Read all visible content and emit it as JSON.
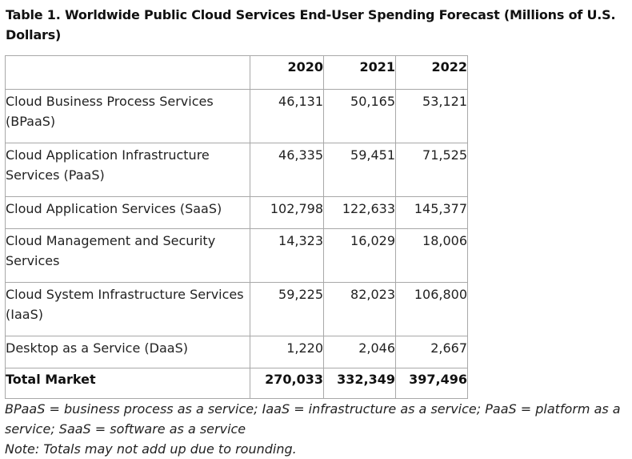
{
  "caption": "Table 1. Worldwide Public Cloud Services End-User Spending Forecast (Millions of U.S. Dollars)",
  "table": {
    "columns": [
      "",
      "2020",
      "2021",
      "2022"
    ],
    "rows": [
      {
        "label": "Cloud Business Process Services (BPaaS)",
        "v2020": "46,131",
        "v2021": "50,165",
        "v2022": "53,121"
      },
      {
        "label": "Cloud Application Infrastructure Services (PaaS)",
        "v2020": "46,335",
        "v2021": "59,451",
        "v2022": "71,525"
      },
      {
        "label": "Cloud Application Services (SaaS)",
        "v2020": "102,798",
        "v2021": "122,633",
        "v2022": "145,377"
      },
      {
        "label": "Cloud Management and Security Services",
        "v2020": "14,323",
        "v2021": "16,029",
        "v2022": "18,006"
      },
      {
        "label": "Cloud System Infrastructure Services (IaaS)",
        "v2020": "59,225",
        "v2021": "82,023",
        "v2022": "106,800"
      },
      {
        "label": "Desktop as a Service (DaaS)",
        "v2020": "1,220",
        "v2021": "2,046",
        "v2022": "2,667"
      }
    ],
    "total": {
      "label": "Total Market",
      "v2020": "270,033",
      "v2021": "332,349",
      "v2022": "397,496"
    }
  },
  "notes": {
    "abbreviations": "BPaaS = business process as a service; IaaS = infrastructure as a service; PaaS = platform as a service; SaaS = software as a service",
    "rounding": "Note: Totals may not add up due to rounding."
  }
}
